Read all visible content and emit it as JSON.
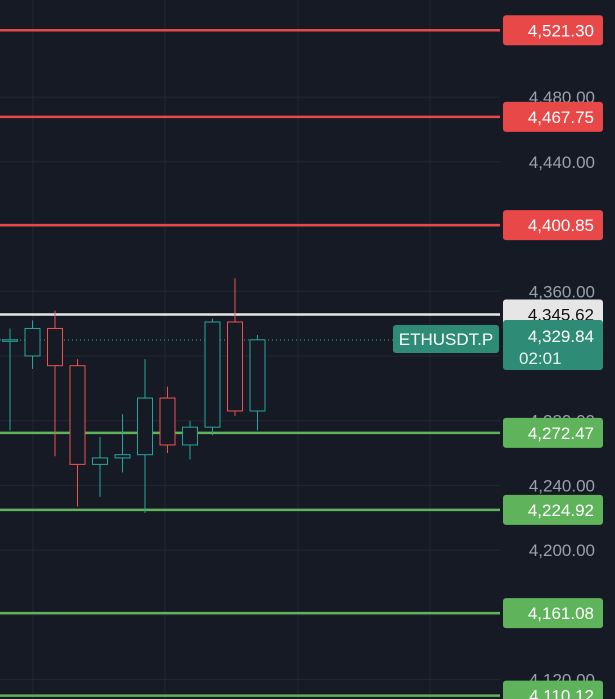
{
  "chart_data": {
    "type": "candlestick",
    "symbol": "ETHUSDT.P",
    "current_price": "4,329.84",
    "countdown": "02:01",
    "y_ticks": [
      "4,480.00",
      "4,440.00",
      "4,400.00",
      "4,360.00",
      "4,320.00",
      "4,280.00",
      "4,240.00",
      "4,200.00",
      "4,160.00",
      "4,120.00"
    ],
    "y_tick_values": [
      4480,
      4440,
      4400,
      4360,
      4320,
      4280,
      4240,
      4200,
      4160,
      4120
    ],
    "ylim": [
      4108,
      4540
    ],
    "grid": true,
    "resistance_lines": [
      {
        "price": 4521.3,
        "label": "4,521.30"
      },
      {
        "price": 4467.75,
        "label": "4,467.75"
      },
      {
        "price": 4400.85,
        "label": "4,400.85"
      }
    ],
    "pivot_line": {
      "price": 4345.62,
      "label": "4,345.62"
    },
    "support_lines": [
      {
        "price": 4272.47,
        "label": "4,272.47"
      },
      {
        "price": 4224.92,
        "label": "4,224.92"
      },
      {
        "price": 4161.08,
        "label": "4,161.08"
      },
      {
        "price": 4110.12,
        "label": "4,110.12"
      }
    ],
    "candles": [
      {
        "open": 4330,
        "high": 4337,
        "low": 4274,
        "close": 4330
      },
      {
        "open": 4320,
        "high": 4342,
        "low": 4312,
        "close": 4337
      },
      {
        "open": 4337,
        "high": 4348,
        "low": 4258,
        "close": 4314
      },
      {
        "open": 4314,
        "high": 4318,
        "low": 4227,
        "close": 4253
      },
      {
        "open": 4253,
        "high": 4270,
        "low": 4233,
        "close": 4257
      },
      {
        "open": 4257,
        "high": 4284,
        "low": 4248,
        "close": 4259
      },
      {
        "open": 4259,
        "high": 4318,
        "low": 4223,
        "close": 4294
      },
      {
        "open": 4294,
        "high": 4301,
        "low": 4260,
        "close": 4265
      },
      {
        "open": 4265,
        "high": 4280,
        "low": 4256,
        "close": 4276
      },
      {
        "open": 4276,
        "high": 4343,
        "low": 4271,
        "close": 4341
      },
      {
        "open": 4341,
        "high": 4368,
        "low": 4283,
        "close": 4286
      },
      {
        "open": 4286,
        "high": 4333,
        "low": 4274,
        "close": 4330
      }
    ]
  },
  "colors": {
    "background": "#161a25",
    "grid": "#232732",
    "up": "#26a69a",
    "down": "#ef5350",
    "resistance": "#e84848",
    "support": "#5fb35a",
    "pivot": "#e6e6e6",
    "symbol_badge": "#2e8b75"
  }
}
